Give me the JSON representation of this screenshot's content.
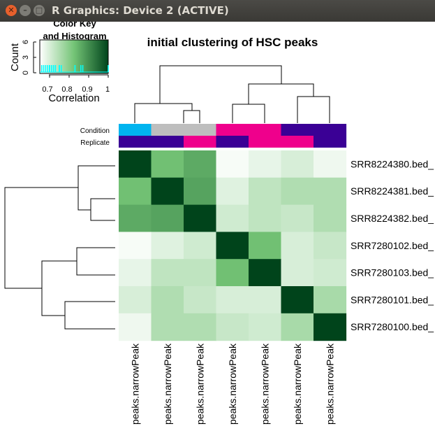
{
  "window": {
    "title": "R Graphics: Device 2 (ACTIVE)",
    "buttons": [
      "close",
      "minimize",
      "maximize"
    ]
  },
  "chart_data": {
    "type": "heatmap",
    "title": "initial clustering of HSC peaks",
    "row_labels": [
      "SRR8224380.bed_",
      "SRR8224381.bed_",
      "SRR8224382.bed_",
      "SRR7280102.bed_",
      "SRR7280103.bed_",
      "SRR7280101.bed_",
      "SRR7280100.bed_"
    ],
    "column_labels": [
      "peaks.narrowPeak",
      "peaks.narrowPeak",
      "peaks.narrowPeak",
      "peaks.narrowPeak",
      "peaks.narrowPeak",
      "peaks.narrowPeak",
      "peaks.narrowPeak"
    ],
    "values": [
      [
        1.0,
        0.83,
        0.86,
        0.66,
        0.68,
        0.7,
        0.67
      ],
      [
        0.83,
        1.0,
        0.87,
        0.69,
        0.73,
        0.75,
        0.75
      ],
      [
        0.86,
        0.87,
        1.0,
        0.71,
        0.73,
        0.72,
        0.75
      ],
      [
        0.66,
        0.69,
        0.71,
        1.0,
        0.83,
        0.7,
        0.72
      ],
      [
        0.68,
        0.73,
        0.73,
        0.83,
        1.0,
        0.7,
        0.71
      ],
      [
        0.7,
        0.75,
        0.72,
        0.7,
        0.7,
        1.0,
        0.76
      ],
      [
        0.67,
        0.75,
        0.75,
        0.72,
        0.71,
        0.76,
        1.0
      ]
    ],
    "annotation_labels": [
      "Condition",
      "Replicate"
    ],
    "annotations": {
      "Condition": [
        "#00b4ef",
        "#bebebe",
        "#bebebe",
        "#ef008c",
        "#ef008c",
        "#3a0095",
        "#3a0095"
      ],
      "Replicate": [
        "#3a0095",
        "#3a0095",
        "#ef008c",
        "#3a0095",
        "#ef008c",
        "#ef008c",
        "#3a0095"
      ]
    },
    "color_scale": {
      "low": "#ffffff",
      "mid": "#74c476",
      "high": "#00441b",
      "range": [
        0.65,
        1.0
      ]
    },
    "color_key": {
      "title_line1": "Color Key",
      "title_line2": "and Histogram",
      "ylabel": "Count",
      "yticks": [
        "0",
        "3",
        "6"
      ],
      "xticks": [
        "0.7",
        "0.8",
        "0.9",
        "1"
      ],
      "xlabel": "Correlation",
      "histogram_color": "#00ffff"
    },
    "dendrogram": "row and column clustering: {380, {381, 382}} and {{102, 103}, {101, 100}}"
  }
}
